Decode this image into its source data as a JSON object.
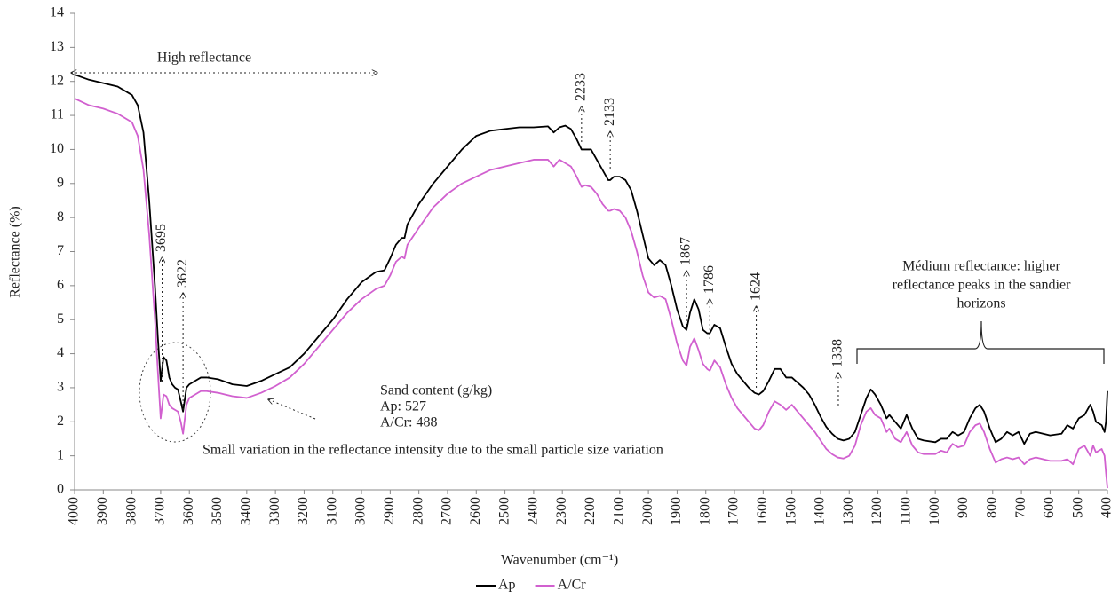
{
  "chart_data": {
    "type": "line",
    "y_label": "Reflectance (%)",
    "x_label": "Wavenumber (cm⁻¹)",
    "xlim": [
      4000,
      400
    ],
    "ylim": [
      0,
      14
    ],
    "xticks": [
      4000,
      3900,
      3800,
      3700,
      3600,
      3500,
      3400,
      3300,
      3200,
      3100,
      3000,
      2900,
      2800,
      2700,
      2600,
      2500,
      2400,
      2300,
      2200,
      2100,
      2000,
      1900,
      1800,
      1700,
      1600,
      1500,
      1400,
      1300,
      1200,
      1100,
      1000,
      900,
      800,
      700,
      600,
      500,
      400
    ],
    "yticks": [
      0,
      1,
      2,
      3,
      4,
      5,
      6,
      7,
      8,
      9,
      10,
      11,
      12,
      13,
      14
    ],
    "grid": false,
    "legend": "bottom",
    "x": [
      4000,
      3950,
      3900,
      3850,
      3800,
      3780,
      3760,
      3740,
      3720,
      3710,
      3700,
      3690,
      3680,
      3670,
      3660,
      3650,
      3640,
      3630,
      3622,
      3610,
      3600,
      3580,
      3560,
      3540,
      3500,
      3450,
      3400,
      3350,
      3300,
      3250,
      3200,
      3150,
      3100,
      3050,
      3000,
      2950,
      2920,
      2900,
      2880,
      2860,
      2850,
      2840,
      2800,
      2750,
      2700,
      2650,
      2600,
      2550,
      2500,
      2450,
      2400,
      2350,
      2330,
      2310,
      2290,
      2270,
      2250,
      2233,
      2220,
      2200,
      2180,
      2160,
      2140,
      2133,
      2120,
      2100,
      2080,
      2060,
      2040,
      2020,
      2000,
      1980,
      1960,
      1940,
      1920,
      1900,
      1880,
      1867,
      1855,
      1840,
      1825,
      1810,
      1795,
      1786,
      1770,
      1750,
      1730,
      1710,
      1690,
      1670,
      1650,
      1630,
      1615,
      1600,
      1580,
      1560,
      1540,
      1520,
      1500,
      1480,
      1460,
      1440,
      1420,
      1400,
      1380,
      1360,
      1340,
      1320,
      1300,
      1280,
      1260,
      1240,
      1225,
      1210,
      1190,
      1170,
      1160,
      1140,
      1120,
      1100,
      1080,
      1060,
      1040,
      1000,
      980,
      960,
      940,
      920,
      900,
      880,
      860,
      845,
      830,
      810,
      790,
      770,
      750,
      730,
      710,
      690,
      670,
      650,
      600,
      560,
      540,
      520,
      500,
      480,
      460,
      450,
      440,
      420,
      410,
      405,
      400
    ],
    "series": [
      {
        "name": "Ap",
        "color": "#000000",
        "values": [
          12.2,
          12.05,
          11.95,
          11.85,
          11.6,
          11.3,
          10.5,
          8.5,
          6.0,
          4.5,
          3.2,
          3.9,
          3.8,
          3.3,
          3.1,
          3.0,
          2.95,
          2.6,
          2.3,
          3.0,
          3.1,
          3.2,
          3.3,
          3.3,
          3.25,
          3.1,
          3.05,
          3.2,
          3.4,
          3.6,
          4.0,
          4.5,
          5.0,
          5.6,
          6.1,
          6.4,
          6.45,
          6.8,
          7.2,
          7.4,
          7.4,
          7.8,
          8.4,
          9.0,
          9.5,
          10.0,
          10.4,
          10.55,
          10.6,
          10.65,
          10.65,
          10.68,
          10.5,
          10.65,
          10.7,
          10.6,
          10.3,
          10.0,
          10.0,
          10.0,
          9.7,
          9.4,
          9.1,
          9.1,
          9.2,
          9.2,
          9.1,
          8.8,
          8.2,
          7.5,
          6.8,
          6.6,
          6.75,
          6.6,
          6.0,
          5.3,
          4.8,
          4.7,
          5.2,
          5.6,
          5.3,
          4.7,
          4.6,
          4.6,
          4.85,
          4.75,
          4.2,
          3.7,
          3.4,
          3.2,
          3.0,
          2.85,
          2.8,
          2.9,
          3.2,
          3.55,
          3.55,
          3.3,
          3.3,
          3.15,
          3.0,
          2.8,
          2.5,
          2.15,
          1.85,
          1.65,
          1.5,
          1.45,
          1.5,
          1.7,
          2.2,
          2.7,
          2.95,
          2.8,
          2.5,
          2.1,
          2.2,
          2.0,
          1.8,
          2.2,
          1.8,
          1.5,
          1.45,
          1.4,
          1.5,
          1.5,
          1.7,
          1.6,
          1.7,
          2.1,
          2.4,
          2.5,
          2.3,
          1.8,
          1.4,
          1.5,
          1.7,
          1.6,
          1.7,
          1.35,
          1.65,
          1.7,
          1.6,
          1.65,
          1.9,
          1.8,
          2.1,
          2.2,
          2.5,
          2.3,
          2.0,
          1.9,
          1.7,
          2.0,
          2.9
        ]
      },
      {
        "name": "A/Cr",
        "color": "#d160cf",
        "values": [
          11.5,
          11.3,
          11.2,
          11.05,
          10.8,
          10.4,
          9.4,
          7.5,
          5.0,
          3.5,
          2.1,
          2.8,
          2.75,
          2.5,
          2.4,
          2.35,
          2.3,
          2.0,
          1.65,
          2.5,
          2.7,
          2.8,
          2.9,
          2.9,
          2.85,
          2.75,
          2.7,
          2.85,
          3.05,
          3.3,
          3.7,
          4.2,
          4.7,
          5.2,
          5.6,
          5.9,
          6.0,
          6.3,
          6.7,
          6.85,
          6.8,
          7.2,
          7.7,
          8.3,
          8.7,
          9.0,
          9.2,
          9.4,
          9.5,
          9.6,
          9.7,
          9.7,
          9.5,
          9.7,
          9.6,
          9.5,
          9.2,
          8.9,
          8.95,
          8.9,
          8.7,
          8.4,
          8.2,
          8.2,
          8.25,
          8.2,
          8.0,
          7.6,
          7.0,
          6.3,
          5.8,
          5.65,
          5.7,
          5.6,
          5.0,
          4.3,
          3.8,
          3.65,
          4.2,
          4.45,
          4.1,
          3.7,
          3.55,
          3.5,
          3.8,
          3.6,
          3.1,
          2.7,
          2.4,
          2.2,
          2.0,
          1.8,
          1.75,
          1.9,
          2.3,
          2.6,
          2.5,
          2.35,
          2.5,
          2.3,
          2.1,
          1.9,
          1.7,
          1.45,
          1.2,
          1.05,
          0.95,
          0.92,
          1.0,
          1.3,
          1.9,
          2.3,
          2.4,
          2.2,
          2.1,
          1.7,
          1.8,
          1.5,
          1.4,
          1.7,
          1.3,
          1.1,
          1.05,
          1.05,
          1.15,
          1.1,
          1.35,
          1.25,
          1.3,
          1.7,
          1.9,
          1.95,
          1.7,
          1.2,
          0.8,
          0.9,
          0.95,
          0.9,
          0.95,
          0.75,
          0.9,
          0.95,
          0.85,
          0.85,
          0.9,
          0.75,
          1.2,
          1.3,
          1.0,
          1.3,
          1.1,
          1.2,
          1.0,
          0.5,
          0.05
        ]
      }
    ],
    "peak_labels": [
      3695,
      3622,
      2233,
      2133,
      1867,
      1786,
      1624,
      1338
    ],
    "annotations": {
      "high": "High reflectance",
      "medium": [
        "Médium reflectance: higher",
        "reflectance peaks in the sandier",
        "horizons"
      ],
      "sand": [
        "Sand content (g/kg)",
        "Ap: 527",
        "A/Cr: 488"
      ],
      "variation": "Small variation in the reflectance intensity due to the small particle size variation"
    }
  }
}
